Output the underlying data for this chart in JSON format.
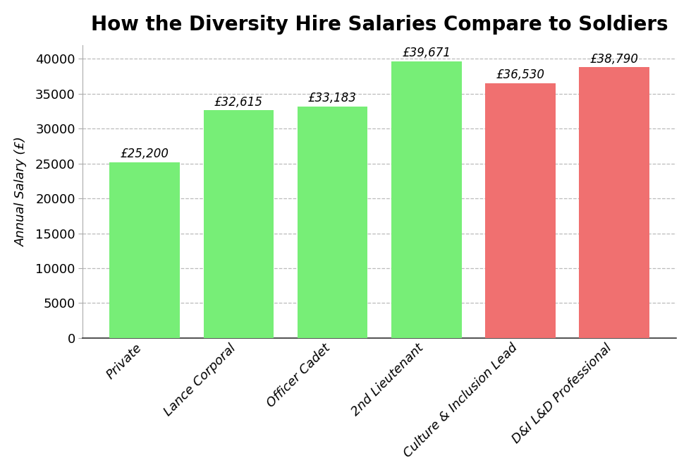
{
  "title": "How the Diversity Hire Salaries Compare to Soldiers",
  "ylabel": "Annual Salary (£)",
  "categories": [
    "Private",
    "Lance Corporal",
    "Officer Cadet",
    "2nd Lieutenant",
    "Culture & Inclusion Lead",
    "D&I L&D Professional"
  ],
  "values": [
    25200,
    32615,
    33183,
    39671,
    36530,
    38790
  ],
  "bar_colors": [
    "#77ee77",
    "#77ee77",
    "#77ee77",
    "#77ee77",
    "#f07070",
    "#f07070"
  ],
  "label_texts": [
    "£25,200",
    "£32,615",
    "£33,183",
    "£39,671",
    "£36,530",
    "£38,790"
  ],
  "ylim": [
    0,
    42000
  ],
  "yticks": [
    0,
    5000,
    10000,
    15000,
    20000,
    25000,
    30000,
    35000,
    40000
  ],
  "background_color": "#ffffff",
  "title_fontsize": 20,
  "ylabel_fontsize": 13,
  "tick_fontsize": 13,
  "label_fontsize": 12,
  "grid_color": "#bbbbbb",
  "bar_width": 0.75
}
